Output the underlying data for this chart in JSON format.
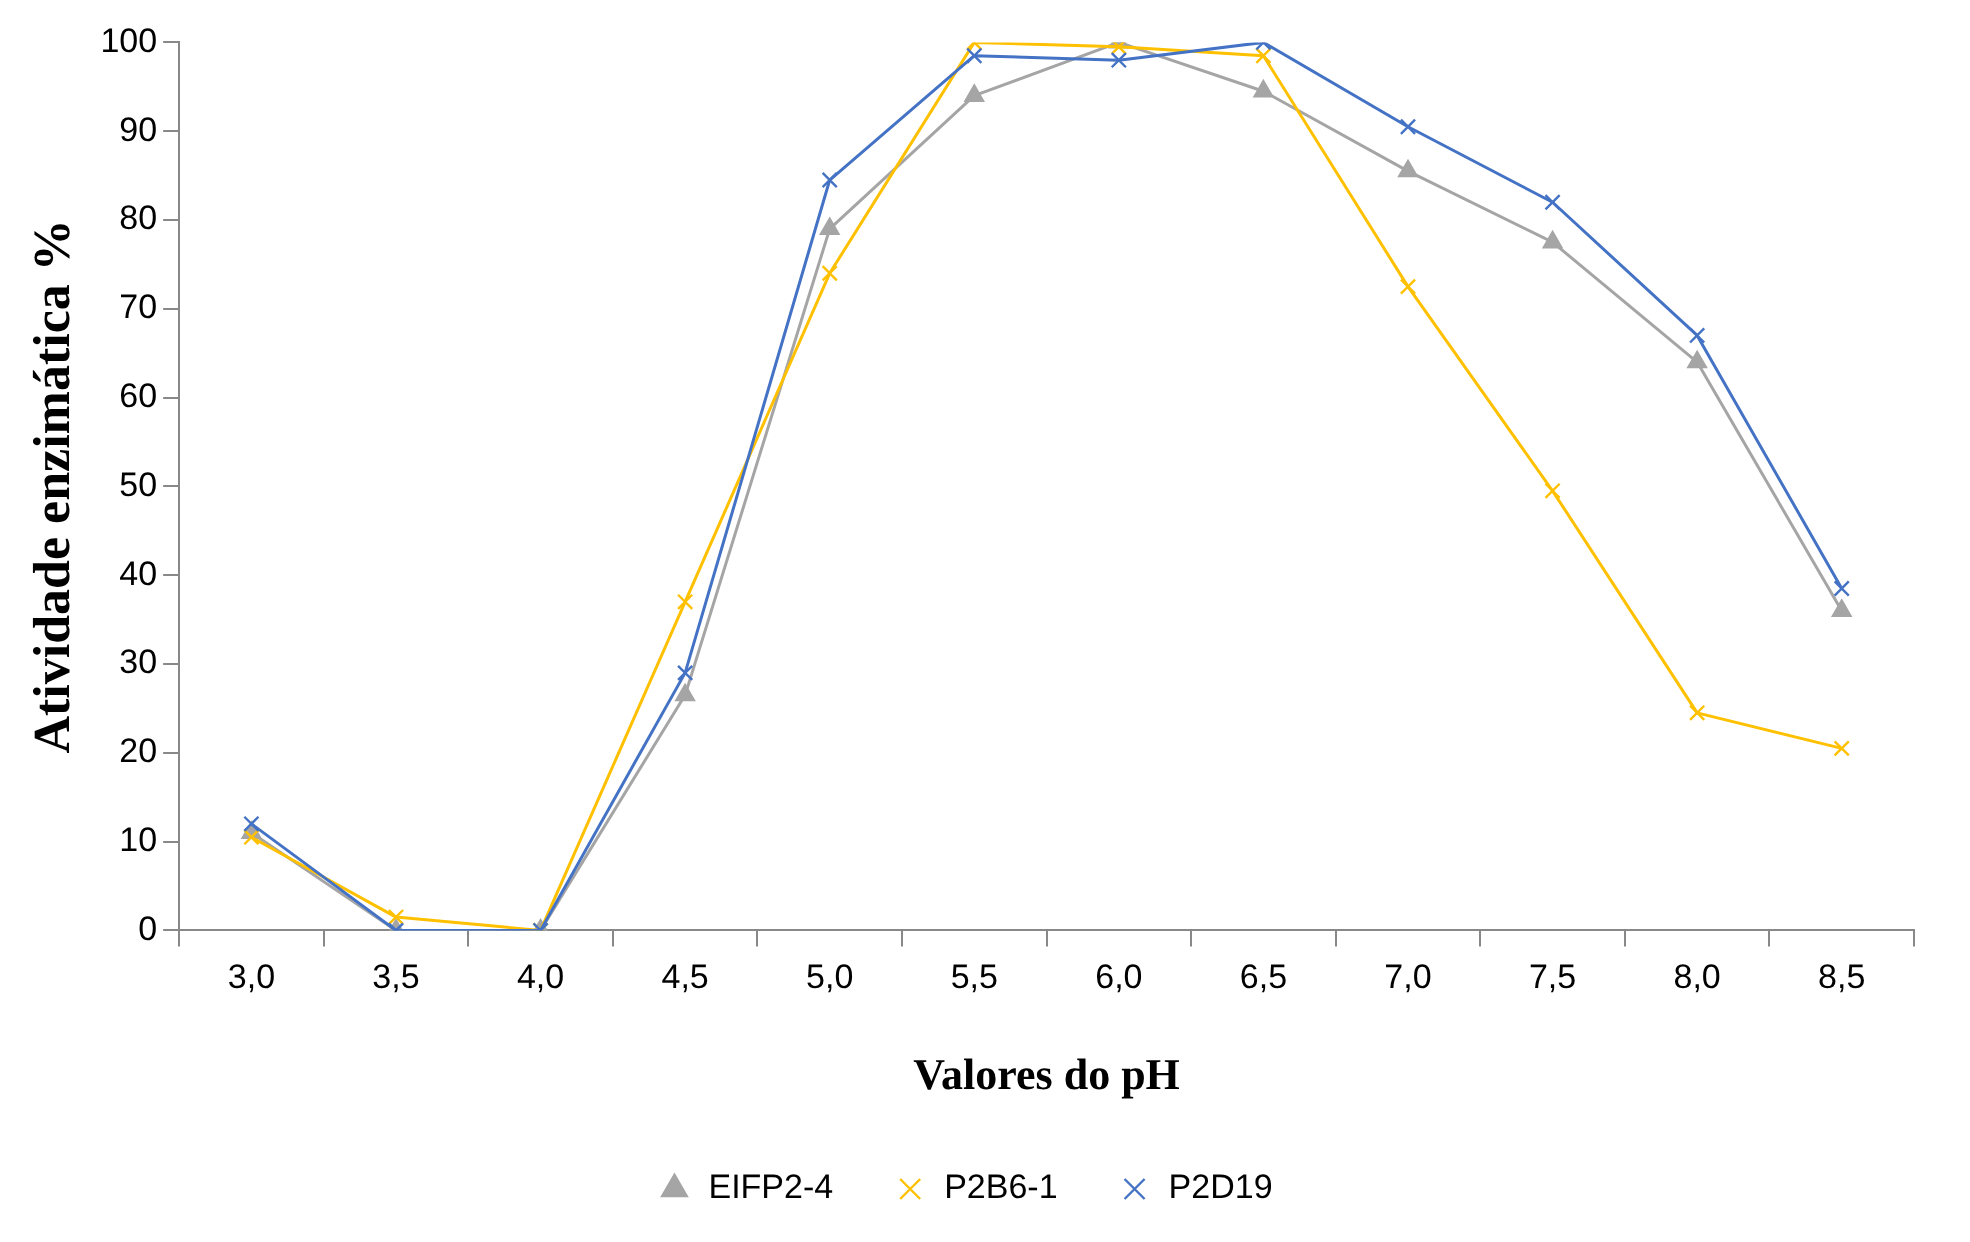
{
  "chart_data": {
    "type": "line",
    "xlabel": "Valores do pH",
    "ylabel": "Atividade enzimática %",
    "categories": [
      "3,0",
      "3,5",
      "4,0",
      "4,5",
      "5,0",
      "5,5",
      "6,0",
      "6,5",
      "7,0",
      "7,5",
      "8,0",
      "8,5"
    ],
    "series": [
      {
        "name": "EIFP2-4",
        "color": "#a5a5a5",
        "marker": "triangle",
        "values": [
          11,
          0,
          0,
          26.5,
          79,
          94,
          100,
          94.5,
          85.5,
          77.5,
          64,
          36
        ]
      },
      {
        "name": "P2B6-1",
        "color": "#ffc000",
        "marker": "cross",
        "values": [
          10.5,
          1.5,
          0,
          37,
          74,
          100,
          99.5,
          98.5,
          72.5,
          49.5,
          24.5,
          20.5
        ]
      },
      {
        "name": "P2D19",
        "color": "#4472c4",
        "marker": "cross",
        "values": [
          12,
          0,
          0,
          29,
          84.5,
          98.5,
          98,
          100,
          90.5,
          82,
          67,
          38.5
        ]
      }
    ],
    "ylim": [
      0,
      100
    ],
    "yticks": [
      0,
      10,
      20,
      30,
      40,
      50,
      60,
      70,
      80,
      90,
      100
    ],
    "grid": false,
    "legend": "bottom"
  }
}
